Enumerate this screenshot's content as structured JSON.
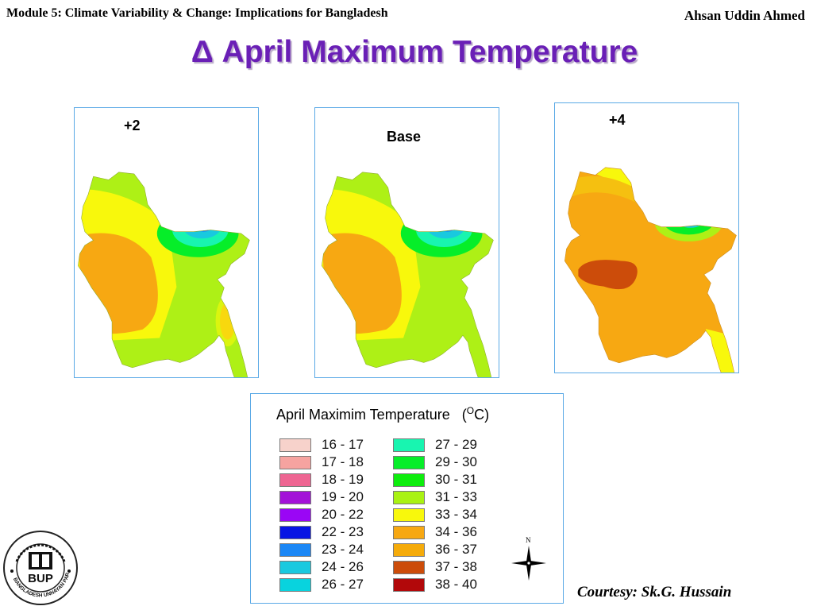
{
  "header": {
    "module": "Module 5: Climate Variability & Change: Implications for Bangladesh",
    "author": "Ahsan Uddin Ahmed"
  },
  "title": "Δ April Maximum Temperature",
  "maps": [
    {
      "label": "+2",
      "scenario": "plus2"
    },
    {
      "label": "Base",
      "scenario": "base"
    },
    {
      "label": "+4",
      "scenario": "plus4"
    }
  ],
  "legend": {
    "title": "April Maximim Temperature",
    "unit_prefix": "(",
    "unit_sup": "O",
    "unit_suffix": "C)",
    "items": [
      {
        "range": "16 - 17",
        "color": "#f7d2cb"
      },
      {
        "range": "17 - 18",
        "color": "#f6a3a0"
      },
      {
        "range": "18 - 19",
        "color": "#ee6592"
      },
      {
        "range": "19 - 20",
        "color": "#a312d8"
      },
      {
        "range": "20 - 22",
        "color": "#9a06f5"
      },
      {
        "range": "22 - 23",
        "color": "#0714e4"
      },
      {
        "range": "23 - 24",
        "color": "#1b87f5"
      },
      {
        "range": "24 - 26",
        "color": "#19c9df"
      },
      {
        "range": "26 - 27",
        "color": "#08d3de"
      },
      {
        "range": "27 - 29",
        "color": "#18f5b0"
      },
      {
        "range": "29 - 30",
        "color": "#06ee29"
      },
      {
        "range": "30 - 31",
        "color": "#0ded0d"
      },
      {
        "range": "31 - 33",
        "color": "#a9f212"
      },
      {
        "range": "33 - 34",
        "color": "#f8f80c"
      },
      {
        "range": "34 - 36",
        "color": "#f7a812"
      },
      {
        "range": "36 - 37",
        "color": "#f5ab0a"
      },
      {
        "range": "37 - 38",
        "color": "#cc4c0a"
      },
      {
        "range": "38 - 40",
        "color": "#b2080a"
      }
    ]
  },
  "north_label": "N",
  "courtesy": "Courtesy: Sk.G. Hussain",
  "logo": {
    "org_name": "BANGLADESH UNNAYAN PARISHAD",
    "abbr": "BUP"
  }
}
